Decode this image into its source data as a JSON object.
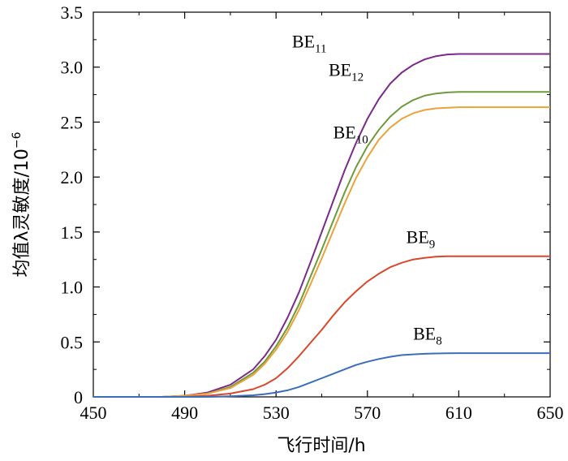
{
  "chart_data": {
    "type": "line",
    "xlabel": "飞行时间/h",
    "ylabel_main": "均值λ灵敏度/10",
    "ylabel_exp": "−6",
    "xlim": [
      450,
      650
    ],
    "ylim": [
      0,
      3.5
    ],
    "x_ticks": [
      450,
      490,
      530,
      570,
      610,
      650
    ],
    "x_tick_labels": [
      "450",
      "490",
      "530",
      "570",
      "610",
      "650"
    ],
    "y_ticks": [
      0,
      0.5,
      1.0,
      1.5,
      2.0,
      2.5,
      3.0,
      3.5
    ],
    "y_tick_labels": [
      "0",
      "0.5",
      "1.0",
      "1.5",
      "2.0",
      "2.5",
      "3.0",
      "3.5"
    ],
    "grid": false,
    "x": [
      450,
      480,
      490,
      500,
      510,
      520,
      525,
      530,
      535,
      540,
      545,
      550,
      555,
      560,
      565,
      570,
      575,
      580,
      585,
      590,
      595,
      600,
      605,
      610,
      620,
      630,
      640,
      650
    ],
    "series": [
      {
        "base": "BE",
        "sub": "11",
        "color": "#7b2a8c",
        "values": [
          0,
          0,
          0.01,
          0.04,
          0.11,
          0.25,
          0.37,
          0.52,
          0.72,
          0.95,
          1.22,
          1.5,
          1.78,
          2.06,
          2.31,
          2.53,
          2.71,
          2.85,
          2.95,
          3.02,
          3.07,
          3.1,
          3.115,
          3.12,
          3.12,
          3.12,
          3.12,
          3.12
        ]
      },
      {
        "base": "BE",
        "sub": "12",
        "color": "#6f9a3b",
        "values": [
          0,
          0,
          0.01,
          0.03,
          0.09,
          0.22,
          0.32,
          0.46,
          0.63,
          0.84,
          1.09,
          1.34,
          1.6,
          1.86,
          2.09,
          2.28,
          2.43,
          2.55,
          2.64,
          2.7,
          2.74,
          2.76,
          2.77,
          2.775,
          2.775,
          2.775,
          2.775,
          2.775
        ]
      },
      {
        "base": "BE",
        "sub": "10",
        "color": "#e9a33a",
        "values": [
          0,
          0,
          0.01,
          0.03,
          0.08,
          0.2,
          0.3,
          0.43,
          0.59,
          0.79,
          1.02,
          1.26,
          1.51,
          1.76,
          1.99,
          2.18,
          2.34,
          2.45,
          2.53,
          2.58,
          2.61,
          2.625,
          2.63,
          2.635,
          2.635,
          2.635,
          2.635,
          2.635
        ]
      },
      {
        "base": "BE",
        "sub": "9",
        "color": "#d9482b",
        "values": [
          0,
          0,
          0,
          0.01,
          0.03,
          0.07,
          0.11,
          0.17,
          0.26,
          0.37,
          0.49,
          0.61,
          0.74,
          0.86,
          0.96,
          1.05,
          1.12,
          1.18,
          1.22,
          1.25,
          1.265,
          1.275,
          1.28,
          1.28,
          1.28,
          1.28,
          1.28,
          1.28
        ]
      },
      {
        "base": "BE",
        "sub": "8",
        "color": "#3b6eb8",
        "values": [
          0,
          0,
          0,
          0,
          0.005,
          0.015,
          0.025,
          0.04,
          0.06,
          0.09,
          0.13,
          0.17,
          0.21,
          0.25,
          0.29,
          0.32,
          0.345,
          0.365,
          0.38,
          0.387,
          0.392,
          0.395,
          0.397,
          0.398,
          0.398,
          0.398,
          0.398,
          0.398
        ]
      }
    ],
    "labels": [
      {
        "series": 0,
        "x": 537,
        "y": 3.18
      },
      {
        "series": 1,
        "x": 553,
        "y": 2.92
      },
      {
        "series": 2,
        "x": 555,
        "y": 2.35
      },
      {
        "series": 3,
        "x": 587,
        "y": 1.4
      },
      {
        "series": 4,
        "x": 590,
        "y": 0.52
      }
    ]
  }
}
